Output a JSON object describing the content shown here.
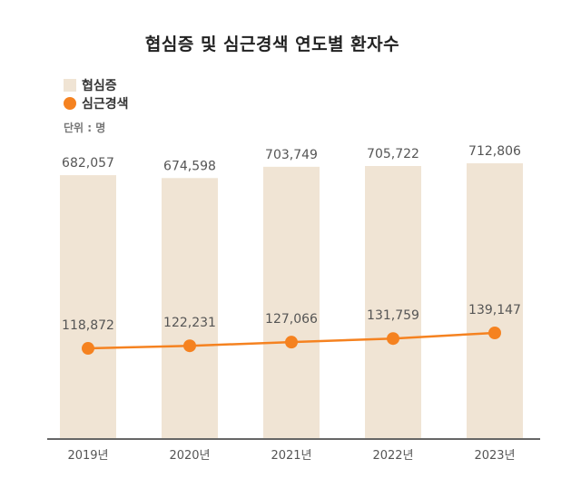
{
  "chart_data": {
    "type": "bar",
    "title": "협심증 및 심근경색 연도별 환자수",
    "unit": "단위 : 명",
    "categories": [
      "2019년",
      "2020년",
      "2021년",
      "2022년",
      "2023년"
    ],
    "series": [
      {
        "name": "협심증",
        "type": "bar",
        "color": "#f0e4d4",
        "values": [
          682057,
          674598,
          703749,
          705722,
          712806
        ],
        "labels": [
          "682,057",
          "674,598",
          "703,749",
          "705,722",
          "712,806"
        ]
      },
      {
        "name": "심근경색",
        "type": "line",
        "color": "#f58220",
        "values": [
          118872,
          122231,
          127066,
          131759,
          139147
        ],
        "labels": [
          "118,872",
          "122,231",
          "127,066",
          "131,759",
          "139,147"
        ]
      }
    ],
    "legend_position": "top-left",
    "grid": false
  }
}
